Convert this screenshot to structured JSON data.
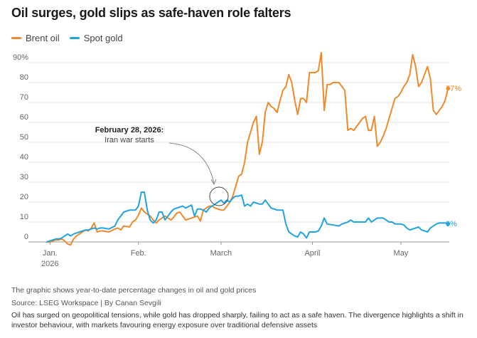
{
  "title": "Oil surges, gold slips as safe-haven role falters",
  "legend": {
    "brent_label": "Brent oil",
    "gold_label": "Spot gold"
  },
  "colors": {
    "brent": "#f0892b",
    "gold": "#23a3de"
  },
  "annotation": {
    "date": "February 28, 2026:",
    "text": "Iran war starts"
  },
  "end_labels": {
    "brent": "77%",
    "gold": "9%"
  },
  "footer": {
    "description": "The graphic shows year-to-date percentage changes in oil and gold prices",
    "source": "Source: LSEG Workspace | By Canan Sevgili",
    "caption": "Oil has surged on geopolitical tensions, while gold has dropped sharply, failing to act as a safe haven. The divergence highlights a shift in investor behaviour, with markets favouring energy exposure over traditional defensive assets"
  },
  "chart_data": {
    "type": "line",
    "title": "Oil surges, gold slips as safe-haven role falters",
    "xlabel": "",
    "ylabel": "",
    "ylim": [
      0,
      90
    ],
    "y_ticks": [
      0,
      10,
      20,
      30,
      40,
      50,
      60,
      70,
      80,
      90
    ],
    "y_tick_labels": [
      "0",
      "10",
      "20",
      "30",
      "40",
      "50",
      "60",
      "70",
      "80",
      "90%"
    ],
    "x_range": [
      "2025-12-31",
      "2026-05-15"
    ],
    "x_ticks": [
      {
        "date": "2026-01-02",
        "label": "Jan.",
        "sublabel": "2026"
      },
      {
        "date": "2026-02-01",
        "label": "Feb.",
        "sublabel": ""
      },
      {
        "date": "2026-03-01",
        "label": "March",
        "sublabel": ""
      },
      {
        "date": "2026-04-01",
        "label": "April",
        "sublabel": ""
      },
      {
        "date": "2026-05-01",
        "label": "May",
        "sublabel": ""
      }
    ],
    "grid": true,
    "legend_position": "top-left",
    "series": [
      {
        "name": "Brent oil",
        "color": "#f0892b",
        "points": [
          [
            "2026-01-01",
            0
          ],
          [
            "2026-01-02",
            0
          ],
          [
            "2026-01-03",
            0.5
          ],
          [
            "2026-01-04",
            1
          ],
          [
            "2026-01-05",
            1
          ],
          [
            "2026-01-06",
            1.5
          ],
          [
            "2026-01-07",
            0.5
          ],
          [
            "2026-01-08",
            -1
          ],
          [
            "2026-01-09",
            -1.5
          ],
          [
            "2026-01-10",
            1.5
          ],
          [
            "2026-01-11",
            3
          ],
          [
            "2026-01-12",
            4
          ],
          [
            "2026-01-13",
            5
          ],
          [
            "2026-01-14",
            6
          ],
          [
            "2026-01-15",
            5.5
          ],
          [
            "2026-01-16",
            7
          ],
          [
            "2026-01-17",
            9.5
          ],
          [
            "2026-01-18",
            5
          ],
          [
            "2026-01-19",
            5.5
          ],
          [
            "2026-01-20",
            5.5
          ],
          [
            "2026-01-22",
            5
          ],
          [
            "2026-01-24",
            6.5
          ],
          [
            "2026-01-25",
            7
          ],
          [
            "2026-01-26",
            6
          ],
          [
            "2026-01-27",
            8
          ],
          [
            "2026-01-29",
            7.5
          ],
          [
            "2026-01-30",
            10
          ],
          [
            "2026-01-31",
            11
          ],
          [
            "2026-02-01",
            13.5
          ],
          [
            "2026-02-02",
            17
          ],
          [
            "2026-02-03",
            15
          ],
          [
            "2026-02-04",
            14
          ],
          [
            "2026-02-05",
            13
          ],
          [
            "2026-02-06",
            11
          ],
          [
            "2026-02-07",
            9.5
          ],
          [
            "2026-02-08",
            11
          ],
          [
            "2026-02-10",
            13
          ],
          [
            "2026-02-12",
            11
          ],
          [
            "2026-02-13",
            12.5
          ],
          [
            "2026-02-14",
            14.5
          ],
          [
            "2026-02-15",
            15
          ],
          [
            "2026-02-16",
            13
          ],
          [
            "2026-02-17",
            11
          ],
          [
            "2026-02-19",
            12
          ],
          [
            "2026-02-20",
            12.5
          ],
          [
            "2026-02-21",
            13
          ],
          [
            "2026-02-22",
            10.5
          ],
          [
            "2026-02-23",
            16
          ],
          [
            "2026-02-24",
            17
          ],
          [
            "2026-02-25",
            18
          ],
          [
            "2026-02-26",
            18
          ],
          [
            "2026-02-27",
            17
          ],
          [
            "2026-02-28",
            16.5
          ],
          [
            "2026-03-01",
            16
          ],
          [
            "2026-03-02",
            16
          ],
          [
            "2026-03-03",
            18
          ],
          [
            "2026-03-04",
            20
          ],
          [
            "2026-03-05",
            23
          ],
          [
            "2026-03-06",
            28
          ],
          [
            "2026-03-07",
            33
          ],
          [
            "2026-03-08",
            34
          ],
          [
            "2026-03-09",
            40
          ],
          [
            "2026-03-10",
            50
          ],
          [
            "2026-03-11",
            55
          ],
          [
            "2026-03-12",
            60
          ],
          [
            "2026-03-13",
            63
          ],
          [
            "2026-03-14",
            44
          ],
          [
            "2026-03-15",
            50
          ],
          [
            "2026-03-16",
            65
          ],
          [
            "2026-03-17",
            70
          ],
          [
            "2026-03-18",
            68
          ],
          [
            "2026-03-19",
            67
          ],
          [
            "2026-03-20",
            65
          ],
          [
            "2026-03-21",
            71
          ],
          [
            "2026-03-22",
            76
          ],
          [
            "2026-03-23",
            78
          ],
          [
            "2026-03-24",
            84
          ],
          [
            "2026-03-25",
            80
          ],
          [
            "2026-03-26",
            71
          ],
          [
            "2026-03-27",
            64
          ],
          [
            "2026-03-28",
            72
          ],
          [
            "2026-03-29",
            72
          ],
          [
            "2026-03-30",
            70
          ],
          [
            "2026-03-31",
            85
          ],
          [
            "2026-04-01",
            85
          ],
          [
            "2026-04-02",
            85
          ],
          [
            "2026-04-03",
            86
          ],
          [
            "2026-04-04",
            95
          ],
          [
            "2026-04-05",
            66
          ],
          [
            "2026-04-06",
            79
          ],
          [
            "2026-04-07",
            79
          ],
          [
            "2026-04-08",
            80
          ],
          [
            "2026-04-10",
            80
          ],
          [
            "2026-04-11",
            78
          ],
          [
            "2026-04-12",
            76
          ],
          [
            "2026-04-13",
            56
          ],
          [
            "2026-04-14",
            57
          ],
          [
            "2026-04-15",
            56
          ],
          [
            "2026-04-16",
            58
          ],
          [
            "2026-04-17",
            60
          ],
          [
            "2026-04-18",
            62
          ],
          [
            "2026-04-19",
            63
          ],
          [
            "2026-04-20",
            56
          ],
          [
            "2026-04-21",
            56
          ],
          [
            "2026-04-22",
            63
          ],
          [
            "2026-04-23",
            48
          ],
          [
            "2026-04-24",
            50
          ],
          [
            "2026-04-25",
            53
          ],
          [
            "2026-04-26",
            57
          ],
          [
            "2026-04-27",
            62
          ],
          [
            "2026-04-28",
            67
          ],
          [
            "2026-04-29",
            72
          ],
          [
            "2026-04-30",
            73
          ],
          [
            "2026-05-01",
            75
          ],
          [
            "2026-05-02",
            78
          ],
          [
            "2026-05-03",
            80
          ],
          [
            "2026-05-04",
            84
          ],
          [
            "2026-05-05",
            94
          ],
          [
            "2026-05-06",
            88
          ],
          [
            "2026-05-07",
            78
          ],
          [
            "2026-05-08",
            80
          ],
          [
            "2026-05-09",
            84
          ],
          [
            "2026-05-10",
            88
          ],
          [
            "2026-05-11",
            82
          ],
          [
            "2026-05-12",
            66
          ],
          [
            "2026-05-13",
            64
          ],
          [
            "2026-05-14",
            66
          ],
          [
            "2026-05-15",
            68
          ],
          [
            "2026-05-16",
            71
          ],
          [
            "2026-05-17",
            77
          ]
        ]
      },
      {
        "name": "Spot gold",
        "color": "#23a3de",
        "points": [
          [
            "2026-01-01",
            0
          ],
          [
            "2026-01-02",
            0.5
          ],
          [
            "2026-01-03",
            1
          ],
          [
            "2026-01-04",
            1.5
          ],
          [
            "2026-01-05",
            1.5
          ],
          [
            "2026-01-06",
            2
          ],
          [
            "2026-01-07",
            3
          ],
          [
            "2026-01-08",
            4
          ],
          [
            "2026-01-09",
            3
          ],
          [
            "2026-01-10",
            4
          ],
          [
            "2026-01-11",
            4.5
          ],
          [
            "2026-01-12",
            5
          ],
          [
            "2026-01-13",
            5.5
          ],
          [
            "2026-01-14",
            6
          ],
          [
            "2026-01-15",
            6
          ],
          [
            "2026-01-16",
            6.5
          ],
          [
            "2026-01-17",
            7
          ],
          [
            "2026-01-18",
            6.5
          ],
          [
            "2026-01-19",
            7
          ],
          [
            "2026-01-20",
            7
          ],
          [
            "2026-01-22",
            6.5
          ],
          [
            "2026-01-24",
            8
          ],
          [
            "2026-01-25",
            11
          ],
          [
            "2026-01-26",
            13
          ],
          [
            "2026-01-27",
            15
          ],
          [
            "2026-01-29",
            16
          ],
          [
            "2026-01-31",
            16
          ],
          [
            "2026-02-01",
            18
          ],
          [
            "2026-02-02",
            25
          ],
          [
            "2026-02-03",
            25
          ],
          [
            "2026-02-04",
            16
          ],
          [
            "2026-02-05",
            11
          ],
          [
            "2026-02-06",
            9.5
          ],
          [
            "2026-02-07",
            11
          ],
          [
            "2026-02-08",
            15
          ],
          [
            "2026-02-09",
            15
          ],
          [
            "2026-02-10",
            11
          ],
          [
            "2026-02-12",
            15
          ],
          [
            "2026-02-13",
            16.5
          ],
          [
            "2026-02-14",
            17
          ],
          [
            "2026-02-15",
            17.5
          ],
          [
            "2026-02-16",
            18
          ],
          [
            "2026-02-17",
            17
          ],
          [
            "2026-02-19",
            18.5
          ],
          [
            "2026-02-20",
            13
          ],
          [
            "2026-02-21",
            16.5
          ],
          [
            "2026-02-22",
            16.5
          ],
          [
            "2026-02-23",
            16
          ],
          [
            "2026-02-24",
            15
          ],
          [
            "2026-02-25",
            17
          ],
          [
            "2026-02-26",
            18
          ],
          [
            "2026-02-27",
            19
          ],
          [
            "2026-02-28",
            20
          ],
          [
            "2026-03-01",
            21
          ],
          [
            "2026-03-02",
            19.5
          ],
          [
            "2026-03-03",
            21
          ],
          [
            "2026-03-04",
            20
          ],
          [
            "2026-03-05",
            22
          ],
          [
            "2026-03-06",
            23
          ],
          [
            "2026-03-07",
            23
          ],
          [
            "2026-03-08",
            23.5
          ],
          [
            "2026-03-09",
            18
          ],
          [
            "2026-03-10",
            19
          ],
          [
            "2026-03-11",
            18
          ],
          [
            "2026-03-12",
            20
          ],
          [
            "2026-03-13",
            19.5
          ],
          [
            "2026-03-14",
            19
          ],
          [
            "2026-03-15",
            19
          ],
          [
            "2026-03-16",
            21
          ],
          [
            "2026-03-17",
            19
          ],
          [
            "2026-03-18",
            17
          ],
          [
            "2026-03-19",
            16.5
          ],
          [
            "2026-03-20",
            16
          ],
          [
            "2026-03-21",
            16
          ],
          [
            "2026-03-22",
            16
          ],
          [
            "2026-03-23",
            9
          ],
          [
            "2026-03-24",
            5
          ],
          [
            "2026-03-25",
            4
          ],
          [
            "2026-03-26",
            3
          ],
          [
            "2026-03-27",
            2.5
          ],
          [
            "2026-03-28",
            5
          ],
          [
            "2026-03-29",
            4
          ],
          [
            "2026-03-30",
            2
          ],
          [
            "2026-03-31",
            5
          ],
          [
            "2026-04-02",
            5
          ],
          [
            "2026-04-03",
            5.5
          ],
          [
            "2026-04-04",
            8
          ],
          [
            "2026-04-05",
            12
          ],
          [
            "2026-04-06",
            9
          ],
          [
            "2026-04-08",
            8.5
          ],
          [
            "2026-04-10",
            8
          ],
          [
            "2026-04-11",
            9
          ],
          [
            "2026-04-13",
            10
          ],
          [
            "2026-04-14",
            11
          ],
          [
            "2026-04-15",
            10
          ],
          [
            "2026-04-17",
            10
          ],
          [
            "2026-04-19",
            10
          ],
          [
            "2026-04-20",
            12
          ],
          [
            "2026-04-21",
            10
          ],
          [
            "2026-04-22",
            11
          ],
          [
            "2026-04-23",
            12
          ],
          [
            "2026-04-24",
            12
          ],
          [
            "2026-04-25",
            12
          ],
          [
            "2026-04-26",
            11
          ],
          [
            "2026-04-27",
            10
          ],
          [
            "2026-04-28",
            10
          ],
          [
            "2026-04-29",
            9
          ],
          [
            "2026-04-30",
            9
          ],
          [
            "2026-05-01",
            9
          ],
          [
            "2026-05-02",
            8.5
          ],
          [
            "2026-05-03",
            7
          ],
          [
            "2026-05-04",
            6
          ],
          [
            "2026-05-05",
            6.5
          ],
          [
            "2026-05-06",
            7
          ],
          [
            "2026-05-07",
            7.5
          ],
          [
            "2026-05-08",
            6
          ],
          [
            "2026-05-09",
            5.5
          ],
          [
            "2026-05-10",
            5
          ],
          [
            "2026-05-11",
            7
          ],
          [
            "2026-05-12",
            8
          ],
          [
            "2026-05-13",
            9
          ],
          [
            "2026-05-14",
            9.5
          ],
          [
            "2026-05-15",
            9.5
          ],
          [
            "2026-05-16",
            9.5
          ],
          [
            "2026-05-17",
            9
          ]
        ]
      }
    ]
  }
}
